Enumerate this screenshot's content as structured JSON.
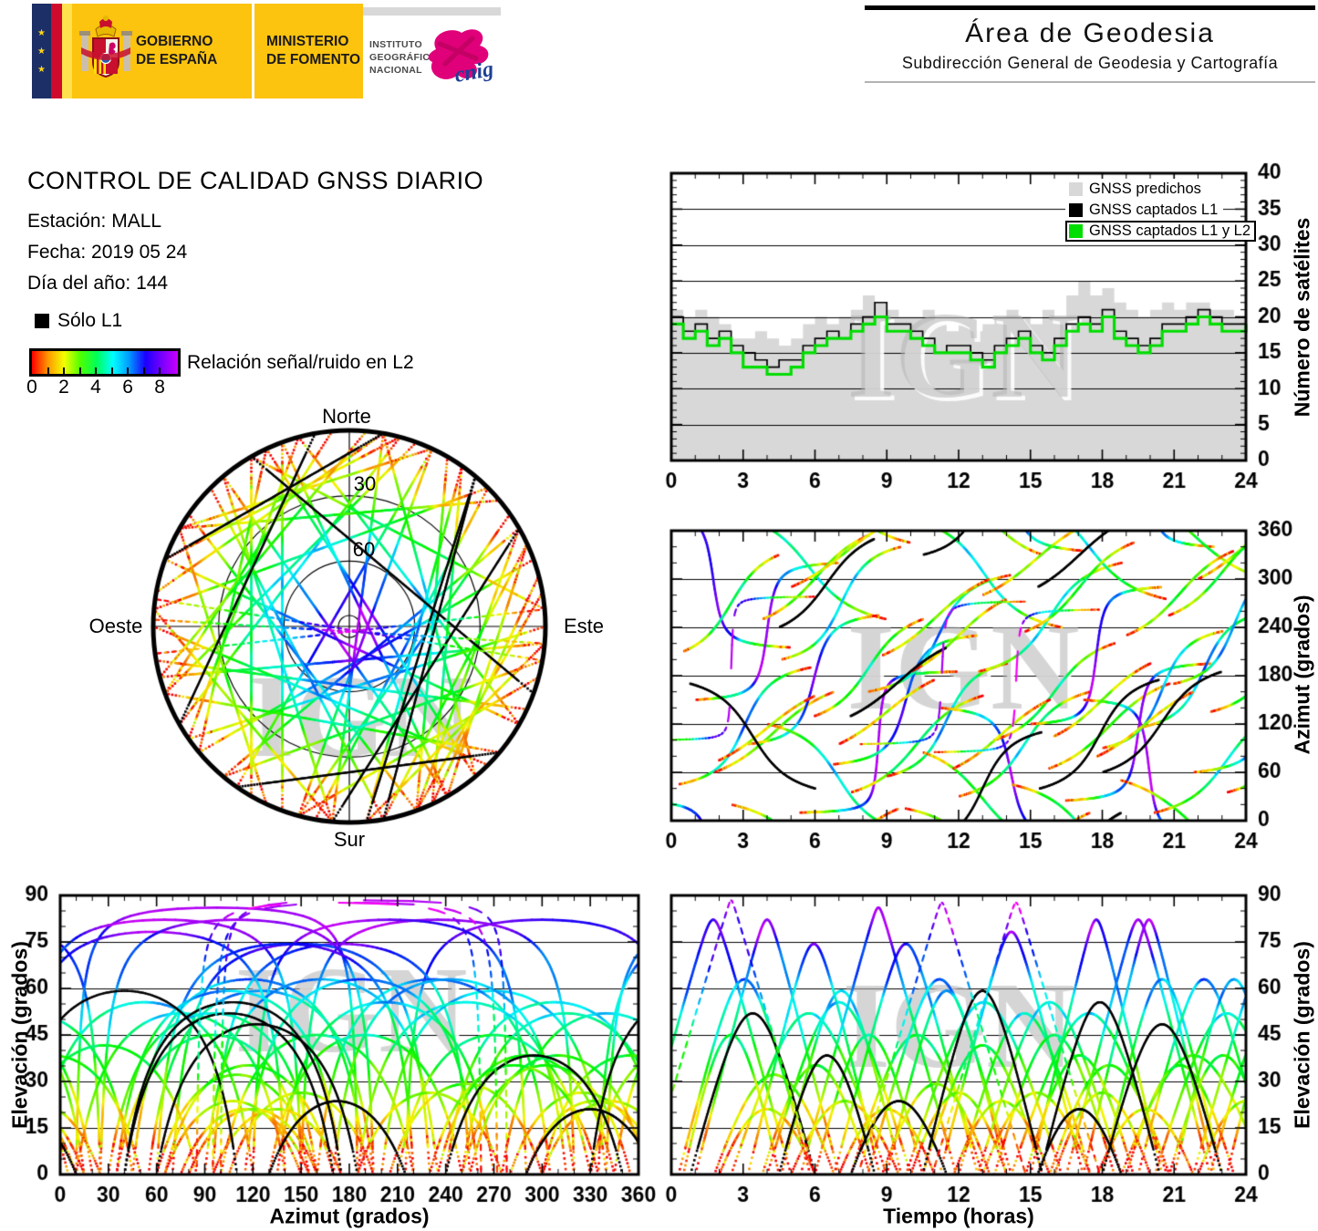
{
  "header": {
    "logos": {
      "gobierno": "GOBIERNO\nDE ESPAÑA",
      "ministerio": "MINISTERIO\nDE FOMENTO",
      "instituto": "INSTITUTO\nGEOGRÁFICO\nNACIONAL",
      "cnig": "cnig"
    },
    "area": {
      "title": "Área de Geodesia",
      "subtitle": "Subdirección General de Geodesia y Cartografía"
    }
  },
  "info": {
    "title": "CONTROL DE CALIDAD GNSS DIARIO",
    "station": "Estación: MALL",
    "date": "Fecha: 2019 05 24",
    "doy": "Día del año: 144"
  },
  "snr_legend": {
    "solo_l1": "Sólo L1",
    "label": "Relación señal/ruido en L2",
    "ticks": [
      0,
      2,
      4,
      6,
      8
    ],
    "range": [
      0,
      9
    ],
    "colors": [
      "#ff0000",
      "#ff9900",
      "#f2ff00",
      "#4dff00",
      "#00ff59",
      "#00ffff",
      "#0099ff",
      "#1a00ff",
      "#7700ff",
      "#c800ff"
    ]
  },
  "watermark": "IGN",
  "skyplot": {
    "north": "Norte",
    "south": "Sur",
    "west": "Oeste",
    "east": "Este",
    "rings_deg": [
      30,
      60
    ],
    "ring_labels": [
      "30",
      "60"
    ]
  },
  "chart_data": [
    {
      "type": "area+step",
      "ylabel": "Número de satélites",
      "xlim": [
        0,
        24
      ],
      "ylim": [
        0,
        40
      ],
      "xticks": [
        0,
        3,
        6,
        9,
        12,
        15,
        18,
        21,
        24
      ],
      "yticks": [
        0,
        5,
        10,
        15,
        20,
        25,
        30,
        35,
        40
      ],
      "grid_y": [
        5,
        10,
        15,
        20,
        25,
        30,
        35
      ],
      "x_step_hours": 0.5,
      "legend": [
        {
          "label": "GNSS predichos",
          "color": "#d8d8d8"
        },
        {
          "label": "GNSS captados L1",
          "color": "#000000"
        },
        {
          "label": "GNSS captados L1 y L2",
          "color": "#00dd00"
        }
      ],
      "series": [
        {
          "name": "GNSS predichos",
          "values": [
            21,
            20,
            21,
            20,
            19,
            17,
            17,
            18,
            17,
            16,
            17,
            19,
            20,
            19,
            20,
            21,
            23,
            22,
            21,
            20,
            20,
            21,
            19,
            18,
            19,
            18,
            19,
            20,
            21,
            20,
            19,
            21,
            20,
            23,
            25,
            23,
            24,
            22,
            21,
            20,
            21,
            22,
            21,
            22,
            22,
            21,
            21,
            20,
            21
          ]
        },
        {
          "name": "GNSS captados L1",
          "values": [
            20,
            18,
            19,
            17,
            18,
            16,
            15,
            14,
            13,
            14,
            14,
            16,
            17,
            18,
            17,
            19,
            20,
            22,
            19,
            19,
            18,
            17,
            15,
            16,
            16,
            15,
            14,
            16,
            17,
            18,
            16,
            15,
            17,
            19,
            20,
            19,
            21,
            18,
            17,
            16,
            17,
            19,
            19,
            20,
            21,
            20,
            19,
            19,
            20
          ]
        },
        {
          "name": "GNSS captados L1 y L2",
          "values": [
            19,
            17,
            18,
            16,
            17,
            15,
            13,
            13,
            12,
            12,
            13,
            15,
            16,
            17,
            17,
            18,
            19,
            20,
            18,
            18,
            17,
            16,
            15,
            15,
            15,
            14,
            13,
            15,
            16,
            17,
            15,
            14,
            16,
            18,
            19,
            18,
            20,
            17,
            16,
            15,
            16,
            18,
            18,
            19,
            20,
            19,
            18,
            18,
            19
          ]
        }
      ]
    },
    {
      "type": "line",
      "ylabel": "Azimut (grados)",
      "xlim": [
        0,
        24
      ],
      "ylim": [
        0,
        360
      ],
      "xticks": [
        0,
        3,
        6,
        9,
        12,
        15,
        18,
        21,
        24
      ],
      "yticks": [
        0,
        60,
        120,
        180,
        240,
        300,
        360
      ],
      "grid_y": [
        60,
        120,
        180,
        240,
        300
      ],
      "source": "satellite_passes"
    },
    {
      "type": "line",
      "xlabel": "Azimut (grados)",
      "ylabel": "Elevación (grados)",
      "xlim": [
        0,
        360
      ],
      "ylim": [
        0,
        90
      ],
      "xticks": [
        0,
        30,
        60,
        90,
        120,
        150,
        180,
        210,
        240,
        270,
        300,
        330,
        360
      ],
      "yticks": [
        0,
        15,
        30,
        45,
        60,
        75,
        90
      ],
      "grid_y": [
        15,
        30,
        45,
        60,
        75
      ],
      "source": "satellite_passes"
    },
    {
      "type": "line",
      "xlabel": "Tiempo (horas)",
      "ylabel": "Elevación (grados)",
      "xlim": [
        0,
        24
      ],
      "ylim": [
        0,
        90
      ],
      "xticks": [
        0,
        3,
        6,
        9,
        12,
        15,
        18,
        21,
        24
      ],
      "yticks": [
        0,
        15,
        30,
        45,
        60,
        75,
        90
      ],
      "grid_y": [
        15,
        30,
        45,
        60,
        75
      ],
      "source": "satellite_passes"
    }
  ],
  "satellite_passes": [
    {
      "t0": -1.5,
      "dur": 6.5,
      "az_rise": 25,
      "az_set": 215,
      "kind": "l1l2"
    },
    {
      "t0": 0.3,
      "dur": 5.5,
      "az_rise": 45,
      "az_set": 190,
      "kind": "l1l2"
    },
    {
      "t0": 1.0,
      "dur": 6.0,
      "az_rise": 150,
      "az_set": 320,
      "kind": "l1l2"
    },
    {
      "t0": 1.8,
      "dur": 5.0,
      "az_rise": 60,
      "az_set": 160,
      "kind": "l1l2"
    },
    {
      "t0": 2.5,
      "dur": 6.5,
      "az_rise": 20,
      "az_set": 250,
      "kind": "l1l2"
    },
    {
      "t0": 3.2,
      "dur": 5.5,
      "az_rise": 95,
      "az_set": 255,
      "kind": "l1l2"
    },
    {
      "t0": 4.0,
      "dur": 6.0,
      "az_rise": 120,
      "az_set": 345,
      "kind": "l1l2"
    },
    {
      "t0": 4.6,
      "dur": 5.0,
      "az_rise": 200,
      "az_set": 340,
      "kind": "l1l2"
    },
    {
      "t0": 5.4,
      "dur": 6.5,
      "az_rise": 10,
      "az_set": 185,
      "kind": "l1l2"
    },
    {
      "t0": 6.0,
      "dur": 4.5,
      "az_rise": 130,
      "az_set": 250,
      "kind": "l1l2"
    },
    {
      "t0": 6.8,
      "dur": 6.0,
      "az_rise": 70,
      "az_set": 230,
      "kind": "l1l2"
    },
    {
      "t0": 7.5,
      "dur": 5.5,
      "az_rise": 35,
      "az_set": 155,
      "kind": "l1l2"
    },
    {
      "t0": 8.2,
      "dur": 6.0,
      "az_rise": 160,
      "az_set": 305,
      "kind": "l1l2"
    },
    {
      "t0": 9.0,
      "dur": 5.0,
      "az_rise": 55,
      "az_set": 195,
      "kind": "l1l2"
    },
    {
      "t0": 9.8,
      "dur": 6.5,
      "az_rise": 15,
      "az_set": 240,
      "kind": "l1l2"
    },
    {
      "t0": 10.5,
      "dur": 5.0,
      "az_rise": 85,
      "az_set": 330,
      "kind": "l1l2"
    },
    {
      "t0": 11.2,
      "dur": 6.0,
      "az_rise": 140,
      "az_set": 335,
      "kind": "l1l2"
    },
    {
      "t0": 12.0,
      "dur": 5.5,
      "az_rise": 30,
      "az_set": 160,
      "kind": "l1l2"
    },
    {
      "t0": 12.8,
      "dur": 6.0,
      "az_rise": 185,
      "az_set": 320,
      "kind": "l1l2"
    },
    {
      "t0": 13.5,
      "dur": 5.0,
      "az_rise": 100,
      "az_set": 220,
      "kind": "l1l2"
    },
    {
      "t0": 14.2,
      "dur": 6.5,
      "az_rise": 45,
      "az_set": 275,
      "kind": "l1l2"
    },
    {
      "t0": 15.0,
      "dur": 5.5,
      "az_rise": 120,
      "az_set": 290,
      "kind": "l1l2"
    },
    {
      "t0": 15.8,
      "dur": 5.0,
      "az_rise": 65,
      "az_set": 170,
      "kind": "l1l2"
    },
    {
      "t0": 16.5,
      "dur": 6.0,
      "az_rise": 25,
      "az_set": 195,
      "kind": "l1l2"
    },
    {
      "t0": 17.2,
      "dur": 5.5,
      "az_rise": 150,
      "az_set": 340,
      "kind": "l1l2"
    },
    {
      "t0": 18.0,
      "dur": 5.0,
      "az_rise": 90,
      "az_set": 235,
      "kind": "l1l2"
    },
    {
      "t0": 18.8,
      "dur": 6.0,
      "az_rise": 50,
      "az_set": 300,
      "kind": "l1l2"
    },
    {
      "t0": 19.5,
      "dur": 5.5,
      "az_rise": 115,
      "az_set": 260,
      "kind": "l1l2"
    },
    {
      "t0": 20.2,
      "dur": 6.0,
      "az_rise": 10,
      "az_set": 140,
      "kind": "l1l2"
    },
    {
      "t0": 21.0,
      "dur": 5.0,
      "az_rise": 170,
      "az_set": 315,
      "kind": "l1l2"
    },
    {
      "t0": 21.8,
      "dur": 6.5,
      "az_rise": 60,
      "az_set": 220,
      "kind": "l1l2"
    },
    {
      "t0": 22.5,
      "dur": 5.5,
      "az_rise": 135,
      "az_set": 270,
      "kind": "l1l2"
    },
    {
      "t0": 23.2,
      "dur": 5.0,
      "az_rise": 35,
      "az_set": 175,
      "kind": "l1l2"
    },
    {
      "t0": 0.5,
      "dur": 4.0,
      "az_rise": 210,
      "az_set": 330,
      "kind": "l1l2"
    },
    {
      "t0": 3.8,
      "dur": 4.5,
      "az_rise": 250,
      "az_set": 355,
      "kind": "l1l2"
    },
    {
      "t0": 7.0,
      "dur": 4.0,
      "az_rise": 95,
      "az_set": 175,
      "kind": "l1l2"
    },
    {
      "t0": 10.0,
      "dur": 4.0,
      "az_rise": 185,
      "az_set": 275,
      "kind": "l1l2"
    },
    {
      "t0": 13.0,
      "dur": 4.5,
      "az_rise": 280,
      "az_set": 370,
      "kind": "l1l2"
    },
    {
      "t0": 16.0,
      "dur": 4.0,
      "az_rise": 105,
      "az_set": 195,
      "kind": "l1l2"
    },
    {
      "t0": 19.0,
      "dur": 4.5,
      "az_rise": 230,
      "az_set": 335,
      "kind": "l1l2"
    },
    {
      "t0": 22.0,
      "dur": 4.0,
      "az_rise": 300,
      "az_set": 385,
      "kind": "l1l2"
    },
    {
      "t0": 2.0,
      "dur": 4.0,
      "az_rise": 75,
      "az_set": 155,
      "kind": "l1l2"
    },
    {
      "t0": 5.0,
      "dur": 4.5,
      "az_rise": 290,
      "az_set": 375,
      "kind": "l1l2"
    },
    {
      "t0": 8.8,
      "dur": 4.5,
      "az_rise": 205,
      "az_set": 300,
      "kind": "l1l2"
    },
    {
      "t0": 11.8,
      "dur": 4.0,
      "az_rise": 65,
      "az_set": 150,
      "kind": "l1l2"
    },
    {
      "t0": 14.8,
      "dur": 4.5,
      "az_rise": 235,
      "az_set": 345,
      "kind": "l1l2"
    },
    {
      "t0": 17.8,
      "dur": 4.0,
      "az_rise": 80,
      "az_set": 160,
      "kind": "l1l2"
    },
    {
      "t0": 20.8,
      "dur": 4.5,
      "az_rise": 255,
      "az_set": 365,
      "kind": "l1l2"
    },
    {
      "t0": 0.8,
      "dur": 5.2,
      "az_rise": 170,
      "az_set": 40,
      "kind": "l1"
    },
    {
      "t0": 7.5,
      "dur": 4.0,
      "az_rise": 130,
      "az_set": 215,
      "kind": "l1"
    },
    {
      "t0": 15.4,
      "dur": 5.0,
      "az_rise": 40,
      "az_set": 175,
      "kind": "l1"
    },
    {
      "t0": 15.3,
      "dur": 3.5,
      "az_rise": 290,
      "az_set": 370,
      "kind": "l1"
    },
    {
      "t0": 18.0,
      "dur": 5.0,
      "az_rise": 60,
      "az_set": 185,
      "kind": "l1"
    },
    {
      "t0": 4.5,
      "dur": 4.0,
      "az_rise": 240,
      "az_set": 350,
      "kind": "l1"
    },
    {
      "t0": 10.5,
      "dur": 5.0,
      "az_rise": 330,
      "az_set": 470,
      "kind": "l1"
    },
    {
      "t0": -1.0,
      "dur": 7.0,
      "az_rise": 100,
      "az_set": 278,
      "kind": "high"
    },
    {
      "t0": 7.8,
      "dur": 7.0,
      "az_rise": 95,
      "az_set": 272,
      "kind": "high"
    },
    {
      "t0": 10.9,
      "dur": 7.0,
      "az_rise": 85,
      "az_set": 262,
      "kind": "high"
    }
  ]
}
